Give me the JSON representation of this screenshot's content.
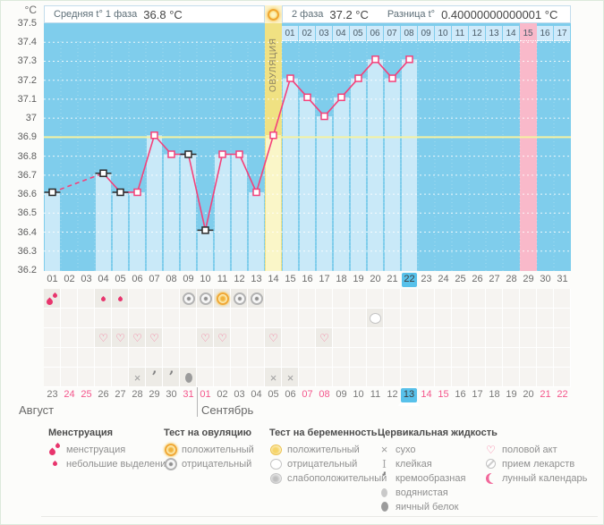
{
  "page": {
    "unit_label": "°C"
  },
  "header": {
    "phase1_label": "Средняя t° 1 фаза",
    "phase1_value": "36.8 °C",
    "phase2_label": "2 фаза",
    "phase2_value": "37.2 °C",
    "diff_label": "Разница t°",
    "diff_value": "0.40000000000001 °C",
    "ovulation_label": "ОВУЛЯЦИЯ"
  },
  "colors": {
    "chart_bg": "#7fcdec",
    "bar": "#c9e9f8",
    "ovulation_bg": "#f0e182",
    "ovulation_bar": "#faf6c8",
    "period_col": "#f9b9ca",
    "dpo_cell": "#cfeafa",
    "coverline": "#f5f2a0",
    "line": "#f4417a",
    "flagged_marker": "#2a2a2a",
    "highlight": "#58c1ea",
    "weekend_date": "#f4568c",
    "menstruation": "#e8356d"
  },
  "chart_data": {
    "type": "line",
    "ylabel": "°C",
    "ylim": [
      36.2,
      37.5
    ],
    "y_ticks": [
      "37.5",
      "37.4",
      "37.3",
      "37.2",
      "37.1",
      "37",
      "36.9",
      "36.8",
      "36.7",
      "36.6",
      "36.5",
      "36.4",
      "36.3",
      "36.2"
    ],
    "grid": "dotted-horizontal-0.1C",
    "coverline": 36.9,
    "cycle_days": [
      "01",
      "02",
      "03",
      "04",
      "05",
      "06",
      "07",
      "08",
      "09",
      "10",
      "11",
      "12",
      "13",
      "14",
      "15",
      "16",
      "17",
      "18",
      "19",
      "20",
      "21",
      "22",
      "23",
      "24",
      "25",
      "26",
      "27",
      "28",
      "29",
      "30",
      "31"
    ],
    "points": [
      {
        "day": 1,
        "temp": 36.61,
        "flagged": true
      },
      {
        "day": 4,
        "temp": 36.71,
        "flagged": true
      },
      {
        "day": 5,
        "temp": 36.61,
        "flagged": true
      },
      {
        "day": 6,
        "temp": 36.61,
        "flagged": false
      },
      {
        "day": 7,
        "temp": 36.91,
        "flagged": false
      },
      {
        "day": 8,
        "temp": 36.81,
        "flagged": false
      },
      {
        "day": 9,
        "temp": 36.81,
        "flagged": true
      },
      {
        "day": 10,
        "temp": 36.41,
        "flagged": true
      },
      {
        "day": 11,
        "temp": 36.81,
        "flagged": false
      },
      {
        "day": 12,
        "temp": 36.81,
        "flagged": false
      },
      {
        "day": 13,
        "temp": 36.61,
        "flagged": false
      },
      {
        "day": 14,
        "temp": 36.91,
        "flagged": false
      },
      {
        "day": 15,
        "temp": 37.21,
        "flagged": false
      },
      {
        "day": 16,
        "temp": 37.11,
        "flagged": false
      },
      {
        "day": 17,
        "temp": 37.01,
        "flagged": false
      },
      {
        "day": 18,
        "temp": 37.11,
        "flagged": false
      },
      {
        "day": 19,
        "temp": 37.21,
        "flagged": false
      },
      {
        "day": 20,
        "temp": 37.31,
        "flagged": false
      },
      {
        "day": 21,
        "temp": 37.21,
        "flagged": false
      },
      {
        "day": 22,
        "temp": 37.31,
        "flagged": false
      }
    ],
    "ovulation_day": 14,
    "current_day": 22,
    "expected_period_day": 29,
    "dpo_labels": [
      "01",
      "02",
      "03",
      "04",
      "05",
      "06",
      "07",
      "08",
      "09",
      "10",
      "11",
      "12",
      "13",
      "14",
      "15",
      "16",
      "17"
    ],
    "dpo_highlighted": 15,
    "legend_position": "bottom"
  },
  "events": {
    "bleeding": [
      {
        "day": 1,
        "type": "menstruation"
      },
      {
        "day": 4,
        "type": "spotting"
      },
      {
        "day": 5,
        "type": "spotting"
      }
    ],
    "ovulation_tests": [
      {
        "day": 9,
        "result": "negative"
      },
      {
        "day": 10,
        "result": "negative"
      },
      {
        "day": 11,
        "result": "positive"
      },
      {
        "day": 12,
        "result": "negative"
      },
      {
        "day": 13,
        "result": "negative"
      }
    ],
    "pregnancy_tests": [
      {
        "day": 20,
        "result": "negative"
      }
    ],
    "intercourse_days": [
      4,
      5,
      6,
      7,
      10,
      11,
      14,
      17
    ],
    "medication_days": [],
    "cervical_fluid": [
      {
        "day": 6,
        "type": "dry"
      },
      {
        "day": 7,
        "type": "creamy"
      },
      {
        "day": 8,
        "type": "creamy"
      },
      {
        "day": 9,
        "type": "eggwhite"
      },
      {
        "day": 14,
        "type": "dry"
      },
      {
        "day": 15,
        "type": "dry"
      }
    ]
  },
  "calendar": {
    "dates": [
      {
        "label": "23",
        "weekend": false
      },
      {
        "label": "24",
        "weekend": true
      },
      {
        "label": "25",
        "weekend": true
      },
      {
        "label": "26",
        "weekend": false
      },
      {
        "label": "27",
        "weekend": false
      },
      {
        "label": "28",
        "weekend": false
      },
      {
        "label": "29",
        "weekend": false
      },
      {
        "label": "30",
        "weekend": false
      },
      {
        "label": "31",
        "weekend": true
      },
      {
        "label": "01",
        "weekend": true
      },
      {
        "label": "02",
        "weekend": false
      },
      {
        "label": "03",
        "weekend": false
      },
      {
        "label": "04",
        "weekend": false
      },
      {
        "label": "05",
        "weekend": false
      },
      {
        "label": "06",
        "weekend": false
      },
      {
        "label": "07",
        "weekend": true
      },
      {
        "label": "08",
        "weekend": true
      },
      {
        "label": "09",
        "weekend": false
      },
      {
        "label": "10",
        "weekend": false
      },
      {
        "label": "11",
        "weekend": false
      },
      {
        "label": "12",
        "weekend": false
      },
      {
        "label": "13",
        "weekend": false,
        "today": true
      },
      {
        "label": "14",
        "weekend": true
      },
      {
        "label": "15",
        "weekend": true
      },
      {
        "label": "16",
        "weekend": false
      },
      {
        "label": "17",
        "weekend": false
      },
      {
        "label": "18",
        "weekend": false
      },
      {
        "label": "19",
        "weekend": false
      },
      {
        "label": "20",
        "weekend": false
      },
      {
        "label": "21",
        "weekend": true
      },
      {
        "label": "22",
        "weekend": true
      }
    ],
    "months": [
      {
        "label": "Август",
        "start_index": 0
      },
      {
        "label": "Сентябрь",
        "start_index": 9
      }
    ]
  },
  "legend": {
    "columns": [
      {
        "header": "Менструация",
        "items": [
          {
            "icon": "menstruation",
            "label": "менструация"
          },
          {
            "icon": "spotting",
            "label": "небольшие выделения"
          }
        ]
      },
      {
        "header": "Тест на овуляцию",
        "items": [
          {
            "icon": "ovu-positive",
            "label": "положительный"
          },
          {
            "icon": "ovu-negative",
            "label": "отрицательный"
          }
        ]
      },
      {
        "header": "Тест на беременность",
        "items": [
          {
            "icon": "preg-positive",
            "label": "положительный"
          },
          {
            "icon": "preg-negative",
            "label": "отрицательный"
          },
          {
            "icon": "preg-weak",
            "label": "слабоположительный"
          }
        ]
      },
      {
        "header": "Цервикальная жидкость",
        "items": [
          {
            "icon": "dry",
            "label": "сухо"
          },
          {
            "icon": "sticky",
            "label": "клейкая"
          },
          {
            "icon": "creamy",
            "label": "кремообразная"
          },
          {
            "icon": "watery",
            "label": "водянистая"
          },
          {
            "icon": "eggwhite",
            "label": "яичный белок"
          }
        ]
      },
      {
        "header": "",
        "items": [
          {
            "icon": "heart",
            "label": "половой акт"
          },
          {
            "icon": "pill",
            "label": "прием лекарств"
          },
          {
            "icon": "moon",
            "label": "лунный календарь"
          }
        ]
      }
    ]
  }
}
